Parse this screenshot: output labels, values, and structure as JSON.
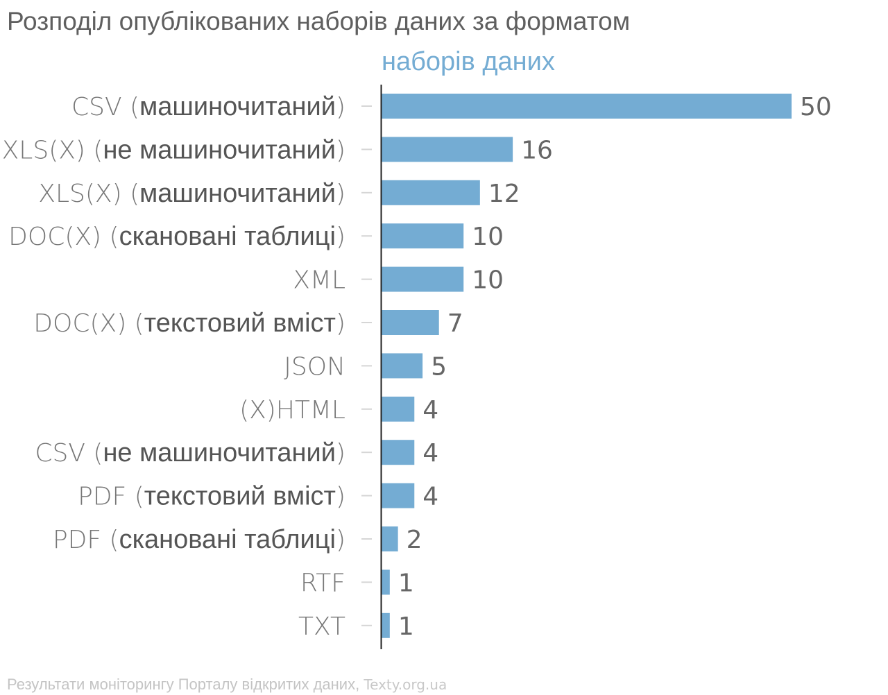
{
  "chart_data": {
    "type": "bar",
    "orientation": "horizontal",
    "title": "Розподіл опублікованих наборів даних за форматом",
    "series": [
      {
        "name": "наборів даних",
        "color": "#74acd3",
        "values": [
          50,
          16,
          12,
          10,
          10,
          7,
          5,
          4,
          4,
          4,
          2,
          1,
          1
        ]
      }
    ],
    "categories": [
      {
        "main": "CSV",
        "paren": "машиночитаний"
      },
      {
        "main": "XLS(X)",
        "paren": "не машиночитаний"
      },
      {
        "main": "XLS(X)",
        "paren": "машиночитаний"
      },
      {
        "main": "DOC(X)",
        "paren": "скановані таблиці"
      },
      {
        "main": "XML",
        "paren": ""
      },
      {
        "main": "DOC(X)",
        "paren": "текстовий вміст"
      },
      {
        "main": "JSON",
        "paren": ""
      },
      {
        "main": "(X)HTML",
        "paren": ""
      },
      {
        "main": "CSV",
        "paren": "не машиночитаний"
      },
      {
        "main": "PDF",
        "paren": "текстовий вміст"
      },
      {
        "main": "PDF",
        "paren": "скановані таблиці"
      },
      {
        "main": "RTF",
        "paren": ""
      },
      {
        "main": "TXT",
        "paren": ""
      }
    ],
    "xlim": [
      0,
      50
    ],
    "grid": false,
    "legend": "top"
  },
  "source": {
    "text": "Результати моніторингу Порталу відкритих даних",
    "separator": ", ",
    "site": "Texty.org.ua"
  }
}
